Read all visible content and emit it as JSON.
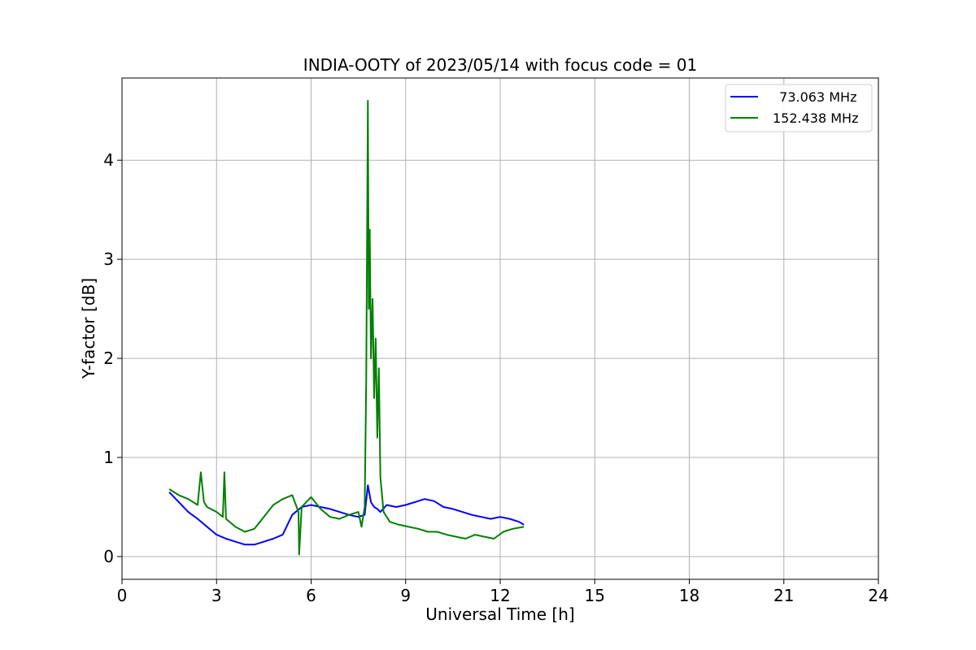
{
  "chart_data": {
    "type": "line",
    "title": "INDIA-OOTY of 2023/05/14 with focus code = 01",
    "xlabel": "Universal Time [h]",
    "ylabel": "Y-factor [dB]",
    "xlim": [
      0,
      24
    ],
    "ylim": [
      -0.23,
      4.83
    ],
    "xticks": [
      0,
      3,
      6,
      9,
      12,
      15,
      18,
      21,
      24
    ],
    "yticks": [
      0,
      1,
      2,
      3,
      4
    ],
    "grid": true,
    "legend_position": "top-right",
    "series": [
      {
        "name": "  73.063 MHz",
        "color": "#0000ff",
        "x": [
          1.5,
          1.8,
          2.1,
          2.4,
          2.7,
          3.0,
          3.3,
          3.6,
          3.9,
          4.2,
          4.5,
          4.8,
          5.1,
          5.4,
          5.7,
          6.0,
          6.3,
          6.6,
          6.9,
          7.2,
          7.5,
          7.7,
          7.8,
          7.9,
          8.0,
          8.1,
          8.2,
          8.4,
          8.7,
          9.0,
          9.3,
          9.6,
          9.9,
          10.2,
          10.5,
          10.8,
          11.1,
          11.4,
          11.7,
          12.0,
          12.3,
          12.6,
          12.75
        ],
        "y": [
          0.65,
          0.55,
          0.45,
          0.38,
          0.3,
          0.22,
          0.18,
          0.15,
          0.12,
          0.12,
          0.15,
          0.18,
          0.22,
          0.42,
          0.5,
          0.52,
          0.5,
          0.48,
          0.45,
          0.42,
          0.4,
          0.42,
          0.72,
          0.55,
          0.5,
          0.48,
          0.45,
          0.52,
          0.5,
          0.52,
          0.55,
          0.58,
          0.56,
          0.5,
          0.48,
          0.45,
          0.42,
          0.4,
          0.38,
          0.4,
          0.38,
          0.35,
          0.32
        ]
      },
      {
        "name": "152.438 MHz",
        "color": "#008000",
        "x": [
          1.5,
          1.8,
          2.1,
          2.4,
          2.5,
          2.6,
          2.7,
          3.0,
          3.2,
          3.25,
          3.3,
          3.6,
          3.9,
          4.2,
          4.5,
          4.8,
          5.1,
          5.4,
          5.6,
          5.62,
          5.7,
          6.0,
          6.3,
          6.6,
          6.9,
          7.2,
          7.5,
          7.6,
          7.7,
          7.75,
          7.8,
          7.83,
          7.86,
          7.9,
          7.95,
          8.0,
          8.05,
          8.1,
          8.15,
          8.2,
          8.3,
          8.5,
          8.8,
          9.1,
          9.4,
          9.7,
          10.0,
          10.3,
          10.6,
          10.9,
          11.2,
          11.5,
          11.8,
          12.1,
          12.4,
          12.75
        ],
        "y": [
          0.68,
          0.62,
          0.58,
          0.52,
          0.85,
          0.55,
          0.5,
          0.45,
          0.4,
          0.85,
          0.38,
          0.3,
          0.25,
          0.28,
          0.4,
          0.52,
          0.58,
          0.62,
          0.45,
          0.02,
          0.5,
          0.6,
          0.48,
          0.4,
          0.38,
          0.42,
          0.45,
          0.3,
          0.5,
          1.8,
          4.6,
          2.5,
          3.3,
          2.0,
          2.6,
          1.6,
          2.2,
          1.2,
          1.9,
          0.8,
          0.45,
          0.35,
          0.32,
          0.3,
          0.28,
          0.25,
          0.25,
          0.22,
          0.2,
          0.18,
          0.22,
          0.2,
          0.18,
          0.25,
          0.28,
          0.3
        ]
      }
    ]
  }
}
